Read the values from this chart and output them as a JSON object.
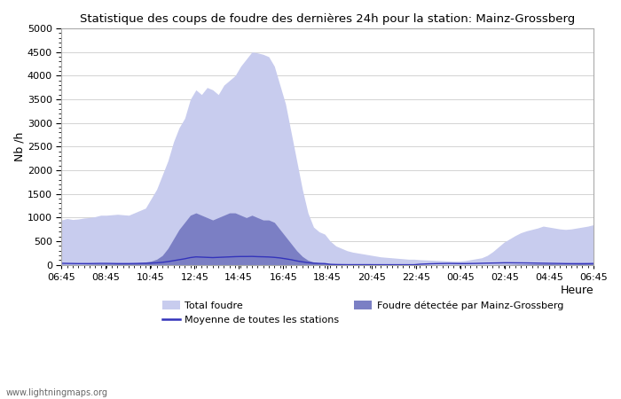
{
  "title": "Statistique des coups de foudre des dernières 24h pour la station: Mainz-Grossberg",
  "xlabel": "Heure",
  "ylabel": "Nb /h",
  "watermark": "www.lightningmaps.org",
  "x_ticks": [
    "06:45",
    "08:45",
    "10:45",
    "12:45",
    "14:45",
    "16:45",
    "18:45",
    "20:45",
    "22:45",
    "00:45",
    "02:45",
    "04:45",
    "06:45"
  ],
  "ylim": [
    0,
    5000
  ],
  "yticks": [
    0,
    500,
    1000,
    1500,
    2000,
    2500,
    3000,
    3500,
    4000,
    4500,
    5000
  ],
  "color_total": "#c8ccee",
  "color_local": "#7b7fc4",
  "color_mean": "#3333bb",
  "background_color": "#ffffff",
  "grid_color": "#cccccc",
  "total_foudre": [
    950,
    980,
    960,
    970,
    990,
    1000,
    1020,
    1050,
    1050,
    1060,
    1070,
    1060,
    1050,
    1100,
    1150,
    1200,
    1400,
    1600,
    1900,
    2200,
    2600,
    2900,
    3100,
    3500,
    3700,
    3600,
    3750,
    3700,
    3600,
    3800,
    3900,
    4000,
    4200,
    4350,
    4500,
    4480,
    4450,
    4400,
    4200,
    3800,
    3400,
    2800,
    2200,
    1600,
    1100,
    800,
    700,
    650,
    500,
    400,
    350,
    300,
    270,
    250,
    230,
    210,
    190,
    170,
    160,
    150,
    140,
    130,
    120,
    120,
    110,
    105,
    100,
    95,
    90,
    85,
    80,
    80,
    90,
    110,
    130,
    150,
    200,
    280,
    380,
    480,
    550,
    620,
    680,
    720,
    750,
    780,
    820,
    800,
    780,
    760,
    750,
    760,
    780,
    800,
    820,
    850
  ],
  "local_foudre": [
    15,
    10,
    12,
    10,
    12,
    15,
    18,
    20,
    20,
    20,
    25,
    30,
    35,
    40,
    50,
    60,
    80,
    120,
    200,
    350,
    550,
    750,
    900,
    1050,
    1100,
    1050,
    1000,
    950,
    1000,
    1050,
    1100,
    1100,
    1050,
    1000,
    1050,
    1000,
    950,
    950,
    900,
    750,
    600,
    450,
    300,
    180,
    100,
    60,
    40,
    30,
    20,
    15,
    10,
    8,
    6,
    5,
    5,
    5,
    5,
    4,
    4,
    4,
    4,
    3,
    3,
    3,
    3,
    3,
    3,
    3,
    3,
    3,
    3,
    3,
    3,
    3,
    4,
    4,
    5,
    6,
    8,
    10,
    12,
    15,
    18,
    20,
    22,
    25,
    25,
    25,
    22,
    20,
    20,
    20,
    22,
    25,
    28,
    30
  ],
  "mean_line": [
    35,
    32,
    30,
    28,
    28,
    28,
    30,
    32,
    32,
    30,
    28,
    28,
    28,
    30,
    32,
    35,
    40,
    45,
    55,
    70,
    90,
    110,
    130,
    155,
    170,
    165,
    160,
    155,
    160,
    165,
    170,
    175,
    178,
    178,
    180,
    175,
    172,
    168,
    160,
    148,
    130,
    110,
    85,
    65,
    48,
    38,
    32,
    28,
    12,
    8,
    6,
    5,
    5,
    5,
    5,
    5,
    4,
    4,
    4,
    4,
    4,
    4,
    4,
    4,
    15,
    20,
    25,
    28,
    30,
    32,
    30,
    28,
    28,
    30,
    32,
    35,
    38,
    40,
    42,
    45,
    45,
    44,
    43,
    42,
    40,
    38,
    36,
    34,
    32,
    30,
    28,
    27,
    27,
    27,
    28,
    30
  ],
  "n_points": 96
}
